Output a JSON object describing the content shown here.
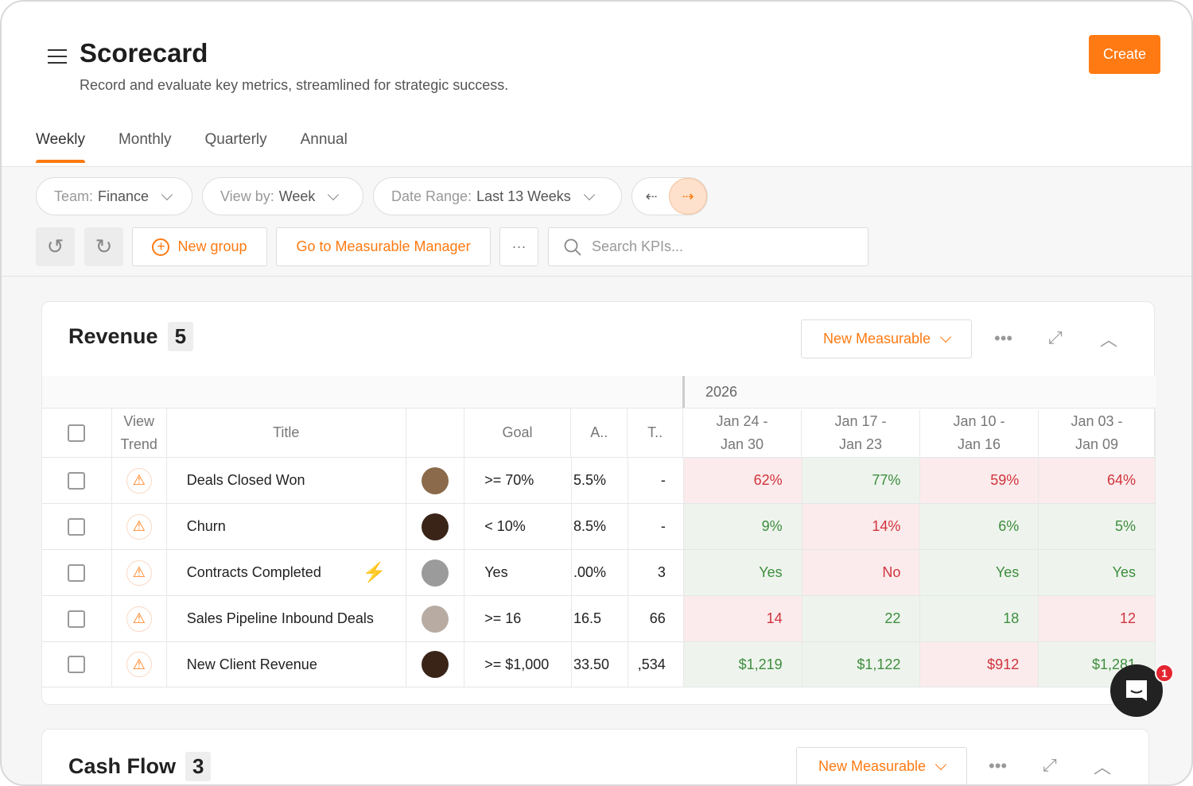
{
  "header": {
    "title": "Scorecard",
    "subtitle": "Record and evaluate key metrics, streamlined for strategic success.",
    "create_label": "Create"
  },
  "tabs": [
    {
      "label": "Weekly",
      "active": true
    },
    {
      "label": "Monthly"
    },
    {
      "label": "Quarterly"
    },
    {
      "label": "Annual"
    }
  ],
  "filters": {
    "team_label": "Team:",
    "team_value": "Finance",
    "view_label": "View by:",
    "view_value": "Week",
    "range_label": "Date Range:",
    "range_value": "Last 13 Weeks"
  },
  "actions": {
    "new_group": "New group",
    "measurable_manager": "Go to Measurable Manager",
    "more": "···",
    "search_placeholder": "Search KPIs..."
  },
  "revenue": {
    "title": "Revenue",
    "count": "5",
    "new_measurable": "New Measurable",
    "year": "2026",
    "columns": {
      "view_trend_1": "View",
      "view_trend_2": "Trend",
      "title": "Title",
      "goal": "Goal",
      "average": "A..",
      "total": "T.."
    },
    "weeks": [
      {
        "l1": "Jan 24 -",
        "l2": "Jan 30"
      },
      {
        "l1": "Jan 17 -",
        "l2": "Jan 23"
      },
      {
        "l1": "Jan 10 -",
        "l2": "Jan 16"
      },
      {
        "l1": "Jan 03 -",
        "l2": "Jan 09"
      }
    ],
    "rows": [
      {
        "title": "Deals Closed Won",
        "goal": ">= 70%",
        "average": "5.5%",
        "total": "-",
        "avatar": "#8a6a4a",
        "values": [
          {
            "v": "62%",
            "s": "red"
          },
          {
            "v": "77%",
            "s": "green"
          },
          {
            "v": "59%",
            "s": "red"
          },
          {
            "v": "64%",
            "s": "red"
          }
        ]
      },
      {
        "title": "Churn",
        "goal": "< 10%",
        "average": "8.5%",
        "total": "-",
        "avatar": "#3a2418",
        "values": [
          {
            "v": "9%",
            "s": "green"
          },
          {
            "v": "14%",
            "s": "red"
          },
          {
            "v": "6%",
            "s": "green"
          },
          {
            "v": "5%",
            "s": "green"
          }
        ]
      },
      {
        "title": "Contracts Completed",
        "goal": "Yes",
        "average": ".00%",
        "total": "3",
        "avatar": "#9b9b9b",
        "automated": true,
        "values": [
          {
            "v": "Yes",
            "s": "green"
          },
          {
            "v": "No",
            "s": "red"
          },
          {
            "v": "Yes",
            "s": "green"
          },
          {
            "v": "Yes",
            "s": "green"
          }
        ]
      },
      {
        "title": "Sales Pipeline Inbound Deals",
        "goal": ">= 16",
        "average": "16.5",
        "total": "66",
        "avatar": "#b8aca2",
        "values": [
          {
            "v": "14",
            "s": "red"
          },
          {
            "v": "22",
            "s": "green"
          },
          {
            "v": "18",
            "s": "green"
          },
          {
            "v": "12",
            "s": "red"
          }
        ]
      },
      {
        "title": "New Client Revenue",
        "goal": ">= $1,000",
        "average": "33.50",
        "total": ",534",
        "avatar": "#3a2418",
        "values": [
          {
            "v": "$1,219",
            "s": "green"
          },
          {
            "v": "$1,122",
            "s": "green"
          },
          {
            "v": "$912",
            "s": "red"
          },
          {
            "v": "$1,281",
            "s": "green"
          }
        ]
      }
    ]
  },
  "cashflow": {
    "title": "Cash Flow",
    "count": "3",
    "new_measurable": "New Measurable"
  },
  "chat": {
    "badge": "1"
  },
  "colors": {
    "accent": "#ff7a12",
    "red_cell": "#fbebec",
    "red_text": "#d0343c",
    "green_cell": "#eef4ed",
    "green_text": "#3e8d3e"
  }
}
